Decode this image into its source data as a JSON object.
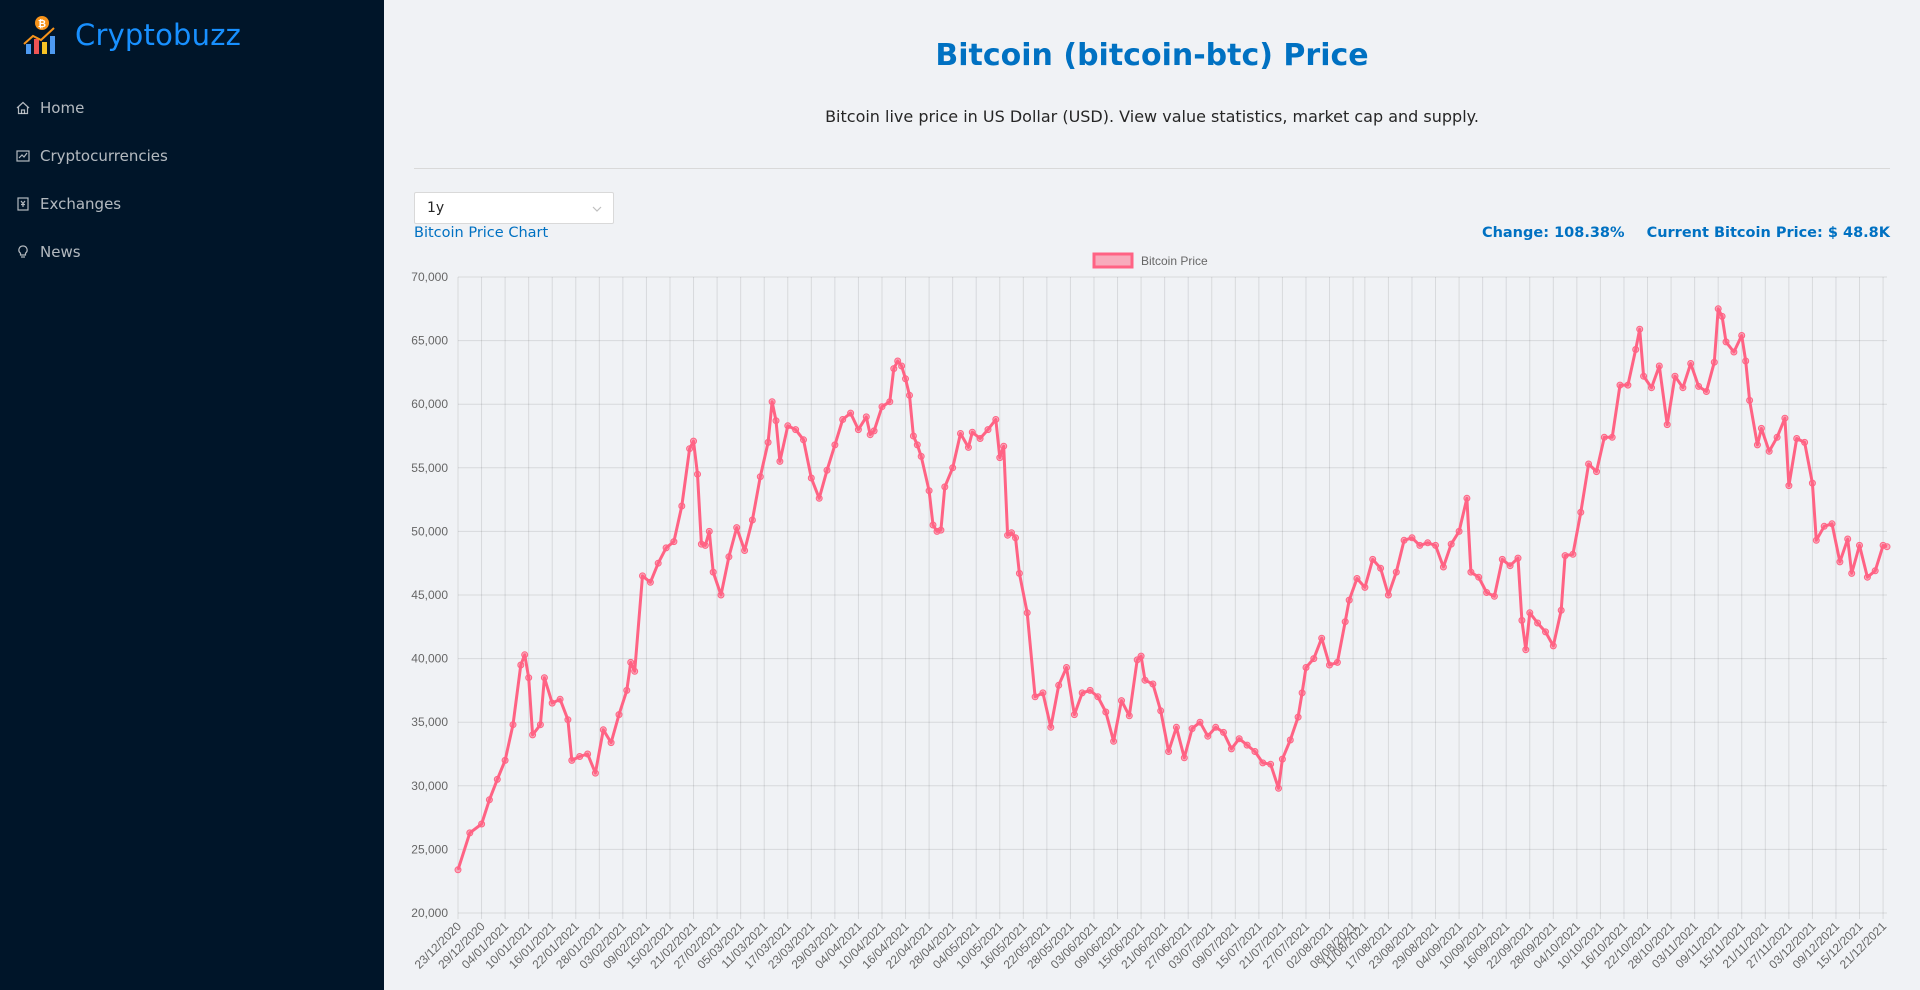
{
  "app": {
    "name": "Cryptobuzz",
    "logo_icon": "crypto-chart-logo-icon"
  },
  "sidebar": {
    "items": [
      {
        "label": "Home",
        "icon": "home-icon"
      },
      {
        "label": "Cryptocurrencies",
        "icon": "fund-icon"
      },
      {
        "label": "Exchanges",
        "icon": "money-collect-icon"
      },
      {
        "label": "News",
        "icon": "bulb-icon"
      }
    ]
  },
  "main": {
    "title": "Bitcoin (bitcoin-btc) Price",
    "description": "Bitcoin live price in US Dollar (USD). View value statistics, market cap and supply.",
    "timeperiod": {
      "selected": "1y"
    },
    "chart_heading": "Bitcoin Price Chart",
    "change_label": "Change: 108.38%",
    "current_price_label": "Current Bitcoin Price: $ 48.8K"
  },
  "colors": {
    "accent": "#0071c2",
    "sidebar_bg": "#001529",
    "logo": "#1890ff",
    "line": "#ff6384"
  },
  "chart_data": {
    "type": "line",
    "legend": {
      "label": "Bitcoin Price",
      "placement": "top"
    },
    "ylim": [
      20000,
      70000
    ],
    "y_ticks": [
      "20,000",
      "25,000",
      "30,000",
      "35,000",
      "40,000",
      "45,000",
      "50,000",
      "55,000",
      "60,000",
      "65,000",
      "70,000"
    ],
    "x_start": "23/12/2020",
    "x_end": "22/12/2021",
    "x_tick_labels": [
      "23/12/2020",
      "29/12/2020",
      "04/01/2021",
      "10/01/2021",
      "16/01/2021",
      "22/01/2021",
      "28/01/2021",
      "03/02/2021",
      "09/02/2021",
      "15/02/2021",
      "21/02/2021",
      "27/02/2021",
      "05/03/2021",
      "11/03/2021",
      "17/03/2021",
      "23/03/2021",
      "29/03/2021",
      "04/04/2021",
      "10/04/2021",
      "16/04/2021",
      "22/04/2021",
      "28/04/2021",
      "04/05/2021",
      "10/05/2021",
      "16/05/2021",
      "22/05/2021",
      "28/05/2021",
      "03/06/2021",
      "09/06/2021",
      "15/06/2021",
      "21/06/2021",
      "27/06/2021",
      "03/07/2021",
      "09/07/2021",
      "15/07/2021",
      "21/07/2021",
      "27/07/2021",
      "02/08/2021",
      "08/08/2021",
      "11/08/2021",
      "17/08/2021",
      "23/08/2021",
      "29/08/2021",
      "04/09/2021",
      "10/09/2021",
      "16/09/2021",
      "22/09/2021",
      "28/09/2021",
      "04/10/2021",
      "10/10/2021",
      "16/10/2021",
      "22/10/2021",
      "28/10/2021",
      "03/11/2021",
      "09/11/2021",
      "15/11/2021",
      "21/11/2021",
      "27/11/2021",
      "03/12/2021",
      "09/12/2021",
      "15/12/2021",
      "21/12/2021"
    ],
    "series": [
      {
        "name": "Bitcoin Price",
        "points": [
          [
            "23/12/2020",
            23400
          ],
          [
            "26/12/2020",
            26300
          ],
          [
            "29/12/2020",
            27000
          ],
          [
            "31/12/2020",
            28900
          ],
          [
            "02/01/2021",
            30500
          ],
          [
            "04/01/2021",
            32000
          ],
          [
            "06/01/2021",
            34800
          ],
          [
            "08/01/2021",
            39500
          ],
          [
            "09/01/2021",
            40300
          ],
          [
            "10/01/2021",
            38500
          ],
          [
            "11/01/2021",
            34000
          ],
          [
            "13/01/2021",
            34800
          ],
          [
            "14/01/2021",
            38500
          ],
          [
            "16/01/2021",
            36500
          ],
          [
            "18/01/2021",
            36800
          ],
          [
            "20/01/2021",
            35200
          ],
          [
            "21/01/2021",
            32000
          ],
          [
            "23/01/2021",
            32300
          ],
          [
            "25/01/2021",
            32500
          ],
          [
            "27/01/2021",
            31000
          ],
          [
            "29/01/2021",
            34400
          ],
          [
            "31/01/2021",
            33400
          ],
          [
            "02/02/2021",
            35600
          ],
          [
            "04/02/2021",
            37500
          ],
          [
            "05/02/2021",
            39700
          ],
          [
            "06/02/2021",
            39000
          ],
          [
            "08/02/2021",
            46500
          ],
          [
            "10/02/2021",
            46000
          ],
          [
            "12/02/2021",
            47500
          ],
          [
            "14/02/2021",
            48700
          ],
          [
            "16/02/2021",
            49200
          ],
          [
            "18/02/2021",
            52000
          ],
          [
            "20/02/2021",
            56500
          ],
          [
            "21/02/2021",
            57100
          ],
          [
            "22/02/2021",
            54500
          ],
          [
            "23/02/2021",
            49000
          ],
          [
            "24/02/2021",
            48900
          ],
          [
            "25/02/2021",
            50000
          ],
          [
            "26/02/2021",
            46800
          ],
          [
            "28/02/2021",
            45000
          ],
          [
            "02/03/2021",
            48000
          ],
          [
            "04/03/2021",
            50300
          ],
          [
            "06/03/2021",
            48500
          ],
          [
            "08/03/2021",
            50900
          ],
          [
            "10/03/2021",
            54300
          ],
          [
            "12/03/2021",
            57000
          ],
          [
            "13/03/2021",
            60200
          ],
          [
            "14/03/2021",
            58700
          ],
          [
            "15/03/2021",
            55500
          ],
          [
            "17/03/2021",
            58300
          ],
          [
            "19/03/2021",
            58000
          ],
          [
            "21/03/2021",
            57200
          ],
          [
            "23/03/2021",
            54200
          ],
          [
            "25/03/2021",
            52600
          ],
          [
            "27/03/2021",
            54800
          ],
          [
            "29/03/2021",
            56800
          ],
          [
            "31/03/2021",
            58800
          ],
          [
            "02/04/2021",
            59300
          ],
          [
            "04/04/2021",
            58000
          ],
          [
            "06/04/2021",
            59000
          ],
          [
            "07/04/2021",
            57600
          ],
          [
            "08/04/2021",
            57900
          ],
          [
            "10/04/2021",
            59800
          ],
          [
            "12/04/2021",
            60200
          ],
          [
            "13/04/2021",
            62800
          ],
          [
            "14/04/2021",
            63400
          ],
          [
            "15/04/2021",
            63000
          ],
          [
            "16/04/2021",
            62000
          ],
          [
            "17/04/2021",
            60700
          ],
          [
            "18/04/2021",
            57500
          ],
          [
            "19/04/2021",
            56800
          ],
          [
            "20/04/2021",
            55900
          ],
          [
            "22/04/2021",
            53200
          ],
          [
            "23/04/2021",
            50500
          ],
          [
            "24/04/2021",
            50000
          ],
          [
            "25/04/2021",
            50100
          ],
          [
            "26/04/2021",
            53500
          ],
          [
            "28/04/2021",
            55000
          ],
          [
            "30/04/2021",
            57700
          ],
          [
            "02/05/2021",
            56600
          ],
          [
            "03/05/2021",
            57800
          ],
          [
            "05/05/2021",
            57300
          ],
          [
            "07/05/2021",
            58000
          ],
          [
            "09/05/2021",
            58800
          ],
          [
            "10/05/2021",
            55800
          ],
          [
            "11/05/2021",
            56700
          ],
          [
            "12/05/2021",
            49700
          ],
          [
            "13/05/2021",
            49900
          ],
          [
            "14/05/2021",
            49500
          ],
          [
            "15/05/2021",
            46700
          ],
          [
            "17/05/2021",
            43600
          ],
          [
            "19/05/2021",
            37000
          ],
          [
            "21/05/2021",
            37300
          ],
          [
            "23/05/2021",
            34600
          ],
          [
            "25/05/2021",
            37900
          ],
          [
            "27/05/2021",
            39300
          ],
          [
            "29/05/2021",
            35600
          ],
          [
            "31/05/2021",
            37300
          ],
          [
            "02/06/2021",
            37500
          ],
          [
            "04/06/2021",
            37000
          ],
          [
            "06/06/2021",
            35800
          ],
          [
            "08/06/2021",
            33500
          ],
          [
            "10/06/2021",
            36700
          ],
          [
            "12/06/2021",
            35500
          ],
          [
            "14/06/2021",
            39900
          ],
          [
            "15/06/2021",
            40200
          ],
          [
            "16/06/2021",
            38300
          ],
          [
            "18/06/2021",
            38000
          ],
          [
            "20/06/2021",
            35900
          ],
          [
            "22/06/2021",
            32700
          ],
          [
            "24/06/2021",
            34600
          ],
          [
            "26/06/2021",
            32200
          ],
          [
            "28/06/2021",
            34500
          ],
          [
            "30/06/2021",
            35000
          ],
          [
            "02/07/2021",
            33900
          ],
          [
            "04/07/2021",
            34600
          ],
          [
            "06/07/2021",
            34200
          ],
          [
            "08/07/2021",
            32900
          ],
          [
            "10/07/2021",
            33700
          ],
          [
            "12/07/2021",
            33200
          ],
          [
            "14/07/2021",
            32700
          ],
          [
            "16/07/2021",
            31800
          ],
          [
            "18/07/2021",
            31700
          ],
          [
            "20/07/2021",
            29800
          ],
          [
            "21/07/2021",
            32100
          ],
          [
            "23/07/2021",
            33600
          ],
          [
            "25/07/2021",
            35400
          ],
          [
            "26/07/2021",
            37300
          ],
          [
            "27/07/2021",
            39300
          ],
          [
            "29/07/2021",
            40000
          ],
          [
            "31/07/2021",
            41600
          ],
          [
            "02/08/2021",
            39500
          ],
          [
            "04/08/2021",
            39700
          ],
          [
            "06/08/2021",
            42900
          ],
          [
            "07/08/2021",
            44600
          ],
          [
            "09/08/2021",
            46300
          ],
          [
            "11/08/2021",
            45600
          ],
          [
            "13/08/2021",
            47800
          ],
          [
            "15/08/2021",
            47100
          ],
          [
            "17/08/2021",
            45000
          ],
          [
            "19/08/2021",
            46800
          ],
          [
            "21/08/2021",
            49300
          ],
          [
            "23/08/2021",
            49500
          ],
          [
            "25/08/2021",
            48900
          ],
          [
            "27/08/2021",
            49100
          ],
          [
            "29/08/2021",
            48900
          ],
          [
            "31/08/2021",
            47200
          ],
          [
            "02/09/2021",
            49000
          ],
          [
            "04/09/2021",
            50000
          ],
          [
            "06/09/2021",
            52600
          ],
          [
            "07/09/2021",
            46800
          ],
          [
            "09/09/2021",
            46400
          ],
          [
            "11/09/2021",
            45200
          ],
          [
            "13/09/2021",
            44900
          ],
          [
            "15/09/2021",
            47800
          ],
          [
            "17/09/2021",
            47300
          ],
          [
            "19/09/2021",
            47900
          ],
          [
            "20/09/2021",
            43000
          ],
          [
            "21/09/2021",
            40700
          ],
          [
            "22/09/2021",
            43600
          ],
          [
            "24/09/2021",
            42800
          ],
          [
            "26/09/2021",
            42100
          ],
          [
            "28/09/2021",
            41000
          ],
          [
            "30/09/2021",
            43800
          ],
          [
            "01/10/2021",
            48100
          ],
          [
            "03/10/2021",
            48200
          ],
          [
            "05/10/2021",
            51500
          ],
          [
            "07/10/2021",
            55300
          ],
          [
            "09/10/2021",
            54700
          ],
          [
            "11/10/2021",
            57400
          ],
          [
            "13/10/2021",
            57400
          ],
          [
            "15/10/2021",
            61500
          ],
          [
            "17/10/2021",
            61500
          ],
          [
            "19/10/2021",
            64300
          ],
          [
            "20/10/2021",
            65900
          ],
          [
            "21/10/2021",
            62200
          ],
          [
            "23/10/2021",
            61300
          ],
          [
            "25/10/2021",
            63000
          ],
          [
            "27/10/2021",
            58400
          ],
          [
            "29/10/2021",
            62200
          ],
          [
            "31/10/2021",
            61300
          ],
          [
            "02/11/2021",
            63200
          ],
          [
            "04/11/2021",
            61400
          ],
          [
            "06/11/2021",
            61000
          ],
          [
            "08/11/2021",
            63300
          ],
          [
            "09/11/2021",
            67500
          ],
          [
            "10/11/2021",
            66900
          ],
          [
            "11/11/2021",
            64900
          ],
          [
            "13/11/2021",
            64100
          ],
          [
            "15/11/2021",
            65400
          ],
          [
            "16/11/2021",
            63400
          ],
          [
            "17/11/2021",
            60300
          ],
          [
            "19/11/2021",
            56800
          ],
          [
            "20/11/2021",
            58100
          ],
          [
            "22/11/2021",
            56300
          ],
          [
            "24/11/2021",
            57400
          ],
          [
            "26/11/2021",
            58900
          ],
          [
            "27/11/2021",
            53600
          ],
          [
            "29/11/2021",
            57300
          ],
          [
            "01/12/2021",
            57000
          ],
          [
            "03/12/2021",
            53800
          ],
          [
            "04/12/2021",
            49300
          ],
          [
            "06/12/2021",
            50400
          ],
          [
            "08/12/2021",
            50600
          ],
          [
            "10/12/2021",
            47600
          ],
          [
            "12/12/2021",
            49400
          ],
          [
            "13/12/2021",
            46700
          ],
          [
            "15/12/2021",
            48900
          ],
          [
            "17/12/2021",
            46400
          ],
          [
            "19/12/2021",
            46900
          ],
          [
            "21/12/2021",
            48900
          ],
          [
            "22/12/2021",
            48800
          ]
        ]
      }
    ]
  }
}
